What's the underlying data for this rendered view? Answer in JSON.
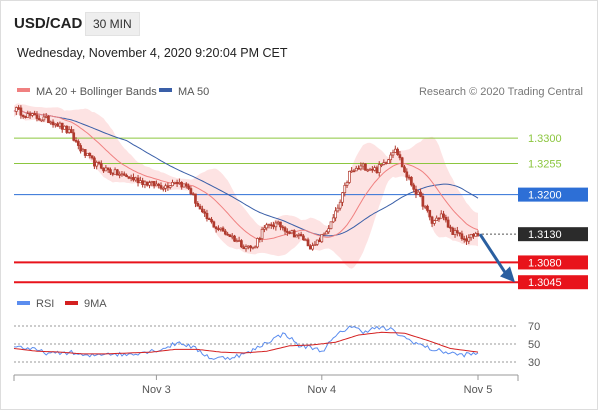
{
  "header": {
    "symbol": "USD/CAD",
    "timeframe": "30 MIN",
    "datetime": "Wednesday, November 4, 2020 9:20:04 PM CET"
  },
  "legend": {
    "ma20_label": "MA 20 + Bollinger Bands",
    "ma50_label": "MA 50",
    "rsi_label": "RSI",
    "rsi_ma_label": "9MA",
    "copyright": "Research © 2020 Trading Central"
  },
  "colors": {
    "candle": "#b03a2e",
    "ma20": "#f08080",
    "bollinger_fill": "#fde0e0",
    "ma50": "#3a5fa8",
    "resistance": "#8cc63f",
    "pivot": "#2d6fd6",
    "support": "#e8131b",
    "current": "#2b2b2b",
    "arrow": "#2a5fa0",
    "rsi": "#5b8def",
    "rsi_ma": "#d42020"
  },
  "chart_data": {
    "type": "candlestick",
    "x_labels": [
      "Nov 3",
      "Nov 4",
      "Nov 5"
    ],
    "y_range": [
      1.3033,
      1.3355
    ],
    "levels": [
      {
        "value": 1.33,
        "label": "1.3300",
        "kind": "resistance"
      },
      {
        "value": 1.3255,
        "label": "1.3255",
        "kind": "resistance"
      },
      {
        "value": 1.32,
        "label": "1.3200",
        "kind": "pivot"
      },
      {
        "value": 1.313,
        "label": "1.3130",
        "kind": "current"
      },
      {
        "value": 1.308,
        "label": "1.3080",
        "kind": "support"
      },
      {
        "value": 1.3045,
        "label": "1.3045",
        "kind": "support"
      }
    ],
    "price_path": [
      [
        0,
        1.3352
      ],
      [
        6,
        1.334
      ],
      [
        12,
        1.3335
      ],
      [
        18,
        1.3328
      ],
      [
        24,
        1.331
      ],
      [
        30,
        1.3275
      ],
      [
        36,
        1.3252
      ],
      [
        44,
        1.3238
      ],
      [
        52,
        1.3228
      ],
      [
        60,
        1.3218
      ],
      [
        66,
        1.3215
      ],
      [
        70,
        1.3225
      ],
      [
        76,
        1.3212
      ],
      [
        82,
        1.3165
      ],
      [
        88,
        1.3142
      ],
      [
        94,
        1.3128
      ],
      [
        100,
        1.311
      ],
      [
        104,
        1.3105
      ],
      [
        108,
        1.3135
      ],
      [
        112,
        1.3148
      ],
      [
        116,
        1.3145
      ],
      [
        120,
        1.3135
      ],
      [
        126,
        1.3122
      ],
      [
        130,
        1.3105
      ],
      [
        134,
        1.3125
      ],
      [
        138,
        1.3148
      ],
      [
        142,
        1.3185
      ],
      [
        146,
        1.3238
      ],
      [
        152,
        1.325
      ],
      [
        158,
        1.3244
      ],
      [
        162,
        1.326
      ],
      [
        166,
        1.3285
      ],
      [
        170,
        1.324
      ],
      [
        174,
        1.3212
      ],
      [
        178,
        1.3185
      ],
      [
        182,
        1.315
      ],
      [
        186,
        1.3165
      ],
      [
        190,
        1.3138
      ],
      [
        196,
        1.312
      ],
      [
        202,
        1.313
      ]
    ],
    "x_max": 202,
    "x_ticks": [
      62,
      134,
      202
    ],
    "rsi": {
      "y_range": [
        30,
        70
      ],
      "levels": [
        70,
        50,
        30
      ],
      "rsi_path": [
        [
          0,
          48
        ],
        [
          8,
          44
        ],
        [
          16,
          39
        ],
        [
          24,
          41
        ],
        [
          32,
          36
        ],
        [
          40,
          40
        ],
        [
          48,
          38
        ],
        [
          56,
          41
        ],
        [
          64,
          44
        ],
        [
          72,
          52
        ],
        [
          78,
          46
        ],
        [
          86,
          34
        ],
        [
          94,
          35
        ],
        [
          102,
          40
        ],
        [
          110,
          52
        ],
        [
          118,
          62
        ],
        [
          124,
          48
        ],
        [
          130,
          46
        ],
        [
          134,
          42
        ],
        [
          140,
          58
        ],
        [
          146,
          70
        ],
        [
          152,
          64
        ],
        [
          158,
          68
        ],
        [
          164,
          66
        ],
        [
          170,
          57
        ],
        [
          176,
          50
        ],
        [
          182,
          44
        ],
        [
          188,
          41
        ],
        [
          194,
          38
        ],
        [
          202,
          39
        ]
      ],
      "ma_path": [
        [
          0,
          45
        ],
        [
          10,
          42
        ],
        [
          20,
          41
        ],
        [
          30,
          39
        ],
        [
          40,
          39
        ],
        [
          50,
          40
        ],
        [
          60,
          41
        ],
        [
          70,
          44
        ],
        [
          80,
          44
        ],
        [
          90,
          41
        ],
        [
          100,
          40
        ],
        [
          110,
          42
        ],
        [
          120,
          48
        ],
        [
          130,
          49
        ],
        [
          140,
          52
        ],
        [
          150,
          60
        ],
        [
          160,
          63
        ],
        [
          170,
          62
        ],
        [
          180,
          54
        ],
        [
          190,
          45
        ],
        [
          202,
          41
        ]
      ]
    }
  }
}
